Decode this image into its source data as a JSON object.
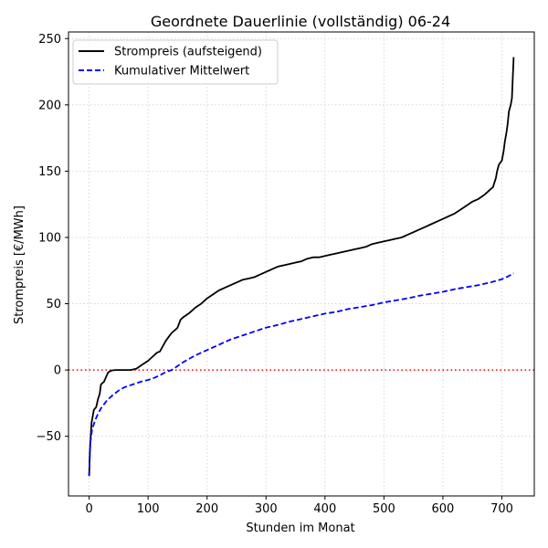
{
  "chart_data": {
    "type": "line",
    "title": "Geordnete Dauerlinie (vollständig) 06-24",
    "xlabel": "Stunden im Monat",
    "ylabel": "Strompreis [€/MWh]",
    "xlim": [
      -35,
      755
    ],
    "ylim": [
      -95,
      255
    ],
    "x_ticks": [
      0,
      100,
      200,
      300,
      400,
      500,
      600,
      700
    ],
    "y_ticks": [
      -50,
      0,
      50,
      100,
      150,
      200,
      250
    ],
    "x_tick_labels": [
      "0",
      "100",
      "200",
      "300",
      "400",
      "500",
      "600",
      "700"
    ],
    "y_tick_labels": [
      "−50",
      "0",
      "50",
      "100",
      "150",
      "200",
      "250"
    ],
    "grid": true,
    "legend_position": "top-left",
    "reference_line": {
      "y": 0,
      "color": "#ff0000",
      "style": "dotted"
    },
    "series": [
      {
        "name": "Strompreis (aufsteigend)",
        "color": "#000000",
        "style": "solid",
        "x": [
          0,
          1,
          2,
          4,
          6,
          8,
          10,
          12,
          15,
          18,
          20,
          22,
          25,
          28,
          30,
          32,
          35,
          38,
          40,
          45,
          50,
          55,
          60,
          70,
          80,
          90,
          100,
          110,
          115,
          120,
          125,
          130,
          135,
          140,
          148,
          150,
          155,
          160,
          170,
          180,
          190,
          200,
          210,
          220,
          230,
          240,
          250,
          260,
          270,
          280,
          290,
          300,
          310,
          320,
          330,
          340,
          350,
          360,
          370,
          380,
          390,
          400,
          410,
          420,
          430,
          440,
          450,
          460,
          470,
          480,
          490,
          500,
          510,
          520,
          530,
          540,
          550,
          560,
          570,
          580,
          590,
          600,
          610,
          620,
          630,
          640,
          650,
          660,
          670,
          675,
          680,
          685,
          690,
          692,
          695,
          700,
          703,
          705,
          708,
          710,
          712,
          715,
          717,
          718,
          720
        ],
        "y": [
          -80,
          -65,
          -55,
          -40,
          -35,
          -30,
          -29,
          -28,
          -22,
          -18,
          -11,
          -10,
          -9,
          -6,
          -4,
          -2,
          -1,
          -0.5,
          -0.3,
          0,
          0,
          0,
          0,
          0,
          1,
          4,
          7,
          11,
          13,
          14,
          18,
          22,
          25,
          28,
          31,
          32,
          38,
          40,
          43,
          47,
          50,
          54,
          57,
          60,
          62,
          64,
          66,
          68,
          69,
          70,
          72,
          74,
          76,
          78,
          79,
          80,
          81,
          82,
          84,
          85,
          85,
          86,
          87,
          88,
          89,
          90,
          91,
          92,
          93,
          95,
          96,
          97,
          98,
          99,
          100,
          102,
          104,
          106,
          108,
          110,
          112,
          114,
          116,
          118,
          121,
          124,
          127,
          129,
          132,
          134,
          136,
          138,
          145,
          150,
          155,
          158,
          165,
          172,
          180,
          186,
          195,
          200,
          205,
          215,
          236
        ]
      },
      {
        "name": "Kumulativer Mittelwert",
        "color": "#0000ff",
        "style": "dashed",
        "x": [
          0,
          2,
          5,
          10,
          15,
          20,
          30,
          40,
          50,
          60,
          70,
          80,
          90,
          100,
          110,
          120,
          130,
          140,
          150,
          160,
          180,
          200,
          220,
          240,
          260,
          280,
          300,
          320,
          340,
          360,
          380,
          400,
          420,
          440,
          460,
          480,
          500,
          520,
          540,
          560,
          580,
          600,
          620,
          640,
          660,
          680,
          700,
          710,
          720
        ],
        "y": [
          -80,
          -55,
          -45,
          -38,
          -33,
          -29,
          -23,
          -19,
          -15.5,
          -13,
          -11.5,
          -10,
          -8.5,
          -7.5,
          -6,
          -4,
          -1.5,
          0,
          3,
          6,
          11,
          15,
          19,
          23,
          26,
          29,
          32,
          34,
          36.5,
          38.5,
          40.5,
          42.5,
          44,
          46,
          47.5,
          49,
          51,
          52.5,
          54,
          56,
          57.5,
          59,
          61,
          62.5,
          64,
          66,
          68.5,
          70.5,
          73
        ]
      }
    ]
  }
}
